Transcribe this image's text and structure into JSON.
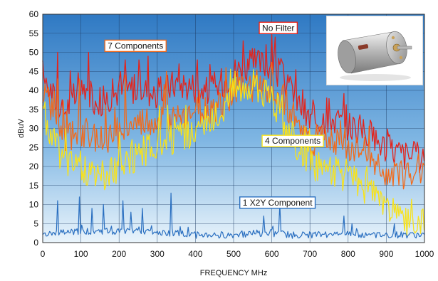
{
  "chart_data": {
    "type": "line",
    "title": "",
    "xlabel": "FREQUENCY MHz",
    "ylabel": "dBuV",
    "xlim": [
      0,
      1000
    ],
    "ylim": [
      0,
      60
    ],
    "x_ticks": [
      0,
      100,
      200,
      300,
      400,
      500,
      600,
      700,
      800,
      900,
      1000
    ],
    "y_ticks": [
      0,
      5,
      10,
      15,
      20,
      25,
      30,
      35,
      40,
      45,
      50,
      55,
      60
    ],
    "grid": true,
    "legend": "none",
    "series": [
      {
        "name": "No Filter",
        "color": "#e4231b",
        "x": [
          0,
          50,
          100,
          150,
          200,
          250,
          300,
          350,
          400,
          450,
          500,
          550,
          600,
          650,
          700,
          750,
          800,
          850,
          900,
          950,
          1000
        ],
        "y": [
          44,
          34,
          40,
          37,
          40,
          41,
          39,
          42,
          41,
          40,
          45,
          47,
          47,
          40,
          32,
          33,
          31,
          29,
          25,
          23,
          22
        ],
        "peaks": [
          [
            40,
            50
          ],
          [
            120,
            50
          ],
          [
            215,
            48
          ],
          [
            275,
            49
          ],
          [
            405,
            48
          ],
          [
            525,
            53
          ],
          [
            585,
            52
          ],
          [
            610,
            54
          ],
          [
            745,
            38
          ]
        ]
      },
      {
        "name": "7 Components",
        "color": "#f26a1b",
        "x": [
          0,
          50,
          100,
          150,
          200,
          250,
          300,
          350,
          400,
          450,
          500,
          550,
          600,
          650,
          700,
          750,
          800,
          850,
          900,
          950,
          1000
        ],
        "y": [
          40,
          28,
          29,
          27,
          29,
          31,
          32,
          33,
          34,
          35,
          39,
          41,
          40,
          35,
          26,
          27,
          26,
          22,
          19,
          18,
          20
        ],
        "peaks": [
          [
            40,
            43
          ],
          [
            95,
            43
          ],
          [
            215,
            44
          ],
          [
            325,
            45
          ],
          [
            410,
            40
          ],
          [
            510,
            45
          ],
          [
            560,
            45
          ],
          [
            640,
            40
          ],
          [
            780,
            32
          ]
        ]
      },
      {
        "name": "4 Components",
        "color": "#f7e21b",
        "x": [
          0,
          50,
          100,
          150,
          200,
          250,
          300,
          350,
          400,
          450,
          500,
          550,
          600,
          650,
          700,
          750,
          800,
          850,
          900,
          950,
          1000
        ],
        "y": [
          34,
          22,
          20,
          17,
          20,
          23,
          26,
          27,
          29,
          32,
          40,
          42,
          38,
          28,
          20,
          19,
          17,
          14,
          9,
          5,
          7
        ],
        "peaks": [
          [
            5,
            37
          ],
          [
            60,
            30
          ],
          [
            200,
            29
          ],
          [
            265,
            28
          ],
          [
            345,
            33
          ],
          [
            505,
            45
          ],
          [
            560,
            44
          ],
          [
            600,
            41
          ],
          [
            705,
            24
          ],
          [
            850,
            20
          ]
        ]
      },
      {
        "name": "1 X2Y Component",
        "color": "#2a6fc0",
        "x": [
          0,
          50,
          100,
          150,
          200,
          250,
          300,
          350,
          400,
          450,
          500,
          550,
          600,
          650,
          700,
          750,
          800,
          850,
          900,
          950,
          1000
        ],
        "y": [
          2,
          2.5,
          3,
          3,
          3,
          3,
          2.5,
          2.5,
          2,
          2,
          2,
          2.5,
          2.5,
          2,
          2,
          2,
          2.5,
          2,
          2,
          2,
          2
        ],
        "peaks": [
          [
            40,
            11
          ],
          [
            95,
            12
          ],
          [
            130,
            9
          ],
          [
            160,
            10
          ],
          [
            210,
            11
          ],
          [
            230,
            8
          ],
          [
            260,
            9
          ],
          [
            335,
            13
          ],
          [
            580,
            7
          ],
          [
            620,
            10
          ],
          [
            790,
            7
          ],
          [
            810,
            5
          ],
          [
            920,
            5
          ]
        ]
      }
    ],
    "annotations": [
      {
        "text": "No Filter",
        "x": 617,
        "y": 56.4,
        "border_color": "#e4231b"
      },
      {
        "text": "7 Components",
        "x": 243,
        "y": 51.7,
        "border_color": "#f26a1b"
      },
      {
        "text": "4 Components",
        "x": 655,
        "y": 26.7,
        "border_color": "#f7e21b"
      },
      {
        "text": "1 X2Y Component",
        "x": 615,
        "y": 10.5,
        "border_color": "#2a6fc0"
      }
    ]
  },
  "photo": {
    "icon": "dc-motor-photo"
  }
}
